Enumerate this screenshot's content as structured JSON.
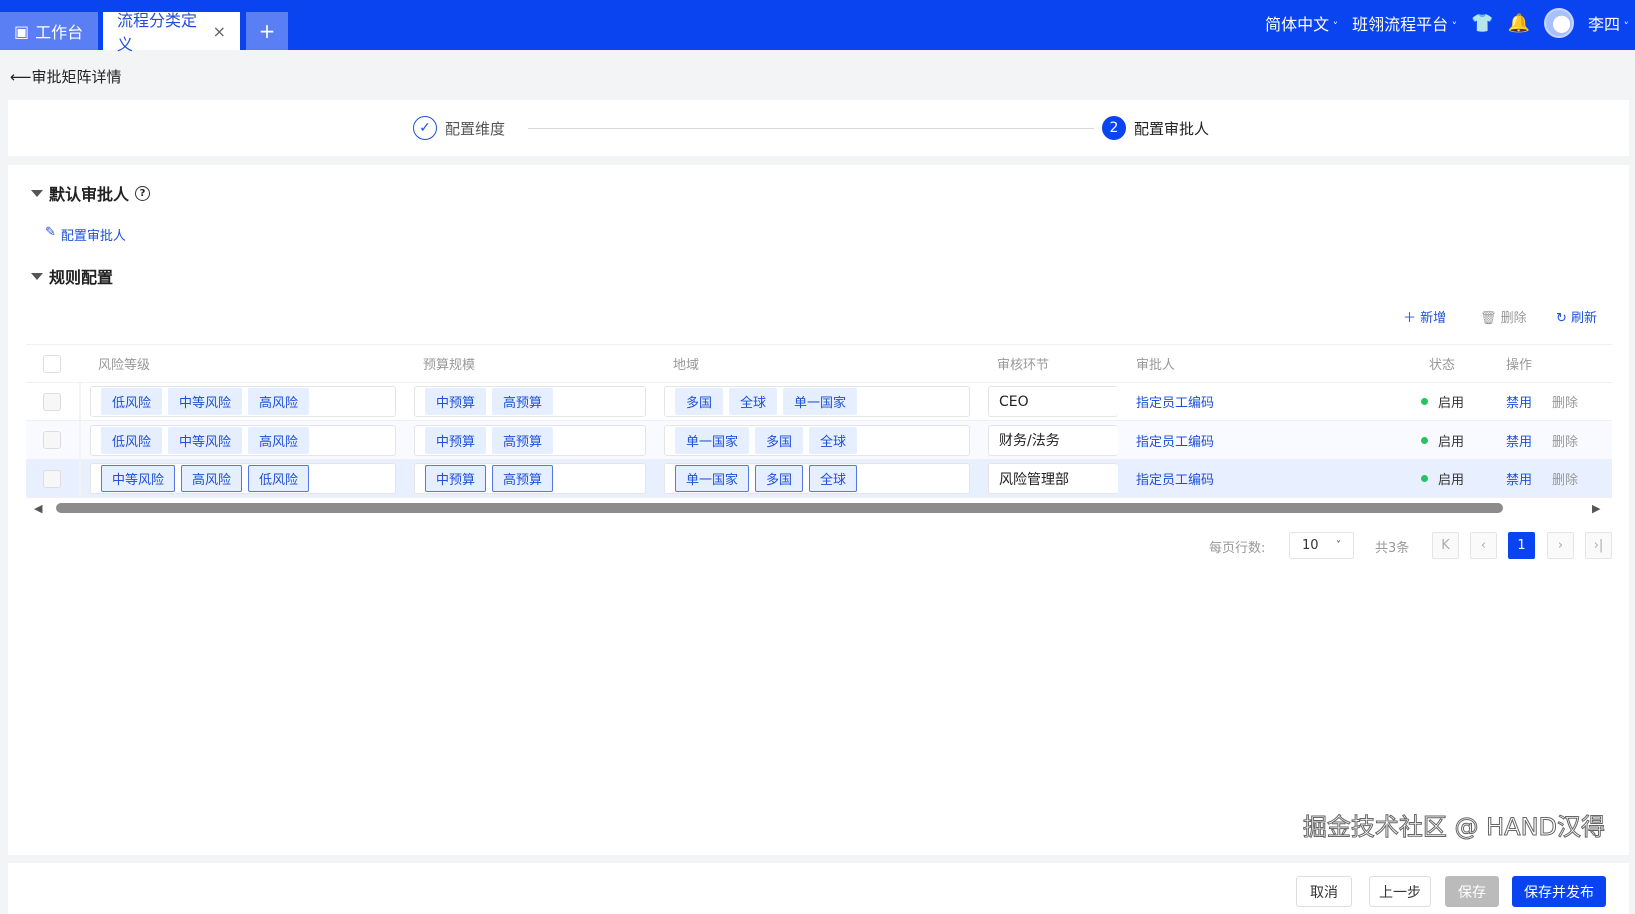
{
  "header": {
    "tabs": [
      {
        "label": "工作台",
        "icon": "monitor-icon"
      },
      {
        "label": "流程分类定义",
        "close": "×"
      },
      {
        "label": "+"
      }
    ],
    "language": "简体中文",
    "platform": "班翎流程平台",
    "user": "李四"
  },
  "page": {
    "back_title": "审批矩阵详情"
  },
  "steps": [
    {
      "label": "配置维度",
      "mark": "✓",
      "status": "done"
    },
    {
      "label": "配置审批人",
      "mark": "2",
      "status": "active"
    }
  ],
  "default_section": {
    "title": "默认审批人",
    "help": "?",
    "config_link": "配置审批人"
  },
  "rules_section": {
    "title": "规则配置"
  },
  "toolbar": {
    "add": "新增",
    "delete": "删除",
    "refresh": "刷新"
  },
  "table": {
    "columns": [
      "风险等级",
      "预算规模",
      "地域",
      "审核环节",
      "审批人",
      "状态",
      "操作"
    ],
    "rows": [
      {
        "risk": [
          "低风险",
          "中等风险",
          "高风险"
        ],
        "budget": [
          "中预算",
          "高预算"
        ],
        "region": [
          "多国",
          "全球",
          "单一国家"
        ],
        "stage": "CEO",
        "approver": "指定员工编码",
        "status": "启用",
        "actions": [
          "禁用",
          "删除"
        ]
      },
      {
        "risk": [
          "低风险",
          "中等风险",
          "高风险"
        ],
        "budget": [
          "中预算",
          "高预算"
        ],
        "region": [
          "单一国家",
          "多国",
          "全球"
        ],
        "stage": "财务/法务",
        "approver": "指定员工编码",
        "status": "启用",
        "actions": [
          "禁用",
          "删除"
        ]
      },
      {
        "risk": [
          "中等风险",
          "高风险",
          "低风险"
        ],
        "budget": [
          "中预算",
          "高预算"
        ],
        "region": [
          "单一国家",
          "多国",
          "全球"
        ],
        "stage": "风险管理部",
        "approver": "指定员工编码",
        "status": "启用",
        "actions": [
          "禁用",
          "删除"
        ],
        "selected": true
      }
    ]
  },
  "pagination": {
    "rows_label": "每页行数:",
    "page_size": "10",
    "total": "共3条",
    "current": "1"
  },
  "footer": {
    "cancel": "取消",
    "prev": "上一步",
    "save": "保存",
    "save_publish": "保存并发布"
  },
  "watermark": "掘金技术社区 @ HAND汉得",
  "colors": {
    "primary": "#0a43f0",
    "status_enabled": "#22c55e"
  }
}
